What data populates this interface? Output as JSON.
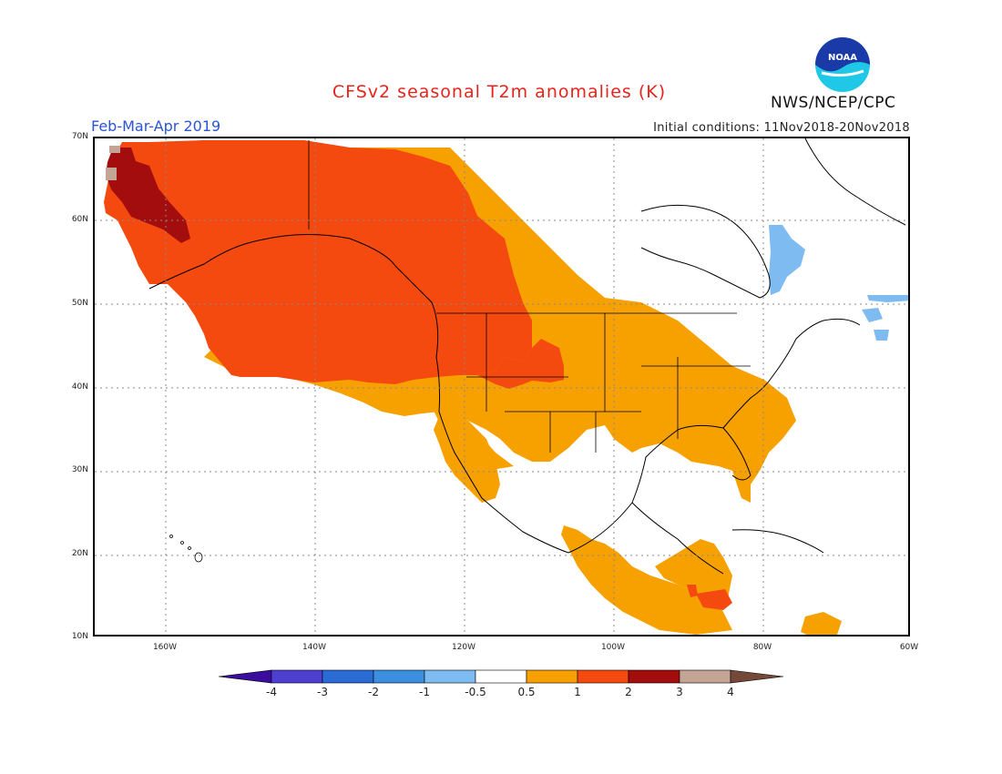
{
  "header": {
    "title": "CFSv2 seasonal T2m anomalies (K)",
    "period": "Feb-Mar-Apr 2019",
    "initial_conditions": "Initial conditions: 11Nov2018-20Nov2018",
    "organization": "NWS/NCEP/CPC",
    "logo_text": "NOAA"
  },
  "axes": {
    "lat_labels": [
      "70N",
      "60N",
      "50N",
      "40N",
      "30N",
      "20N",
      "10N"
    ],
    "lon_labels": [
      "160W",
      "140W",
      "120W",
      "100W",
      "80W",
      "60W"
    ]
  },
  "colorbar": {
    "labels": [
      "-4",
      "-3",
      "-2",
      "-1",
      "-0.5",
      "0.5",
      "1",
      "2",
      "3",
      "4"
    ],
    "colors": [
      "#3a0d9e",
      "#4d3fd0",
      "#2a6bd6",
      "#3c8ee0",
      "#7dbbf0",
      "#ffffff",
      "#f7a100",
      "#f54a0f",
      "#a30d0d",
      "#c4a494",
      "#74493a"
    ]
  },
  "colors": {
    "anomaly_0_5_1": "#f7a100",
    "anomaly_1_2": "#f54a0f",
    "anomaly_2_3": "#a30d0d",
    "anomaly_3_4": "#c4a494",
    "cold_anomaly": "#7dbbf0"
  }
}
